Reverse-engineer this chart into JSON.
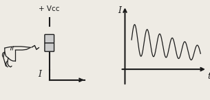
{
  "bg_color": "#eeebe4",
  "vcc_label": "+ Vcc",
  "I_label": "I",
  "t_label": "t",
  "fig_width": 3.05,
  "fig_height": 1.46,
  "fig_dpi": 100
}
